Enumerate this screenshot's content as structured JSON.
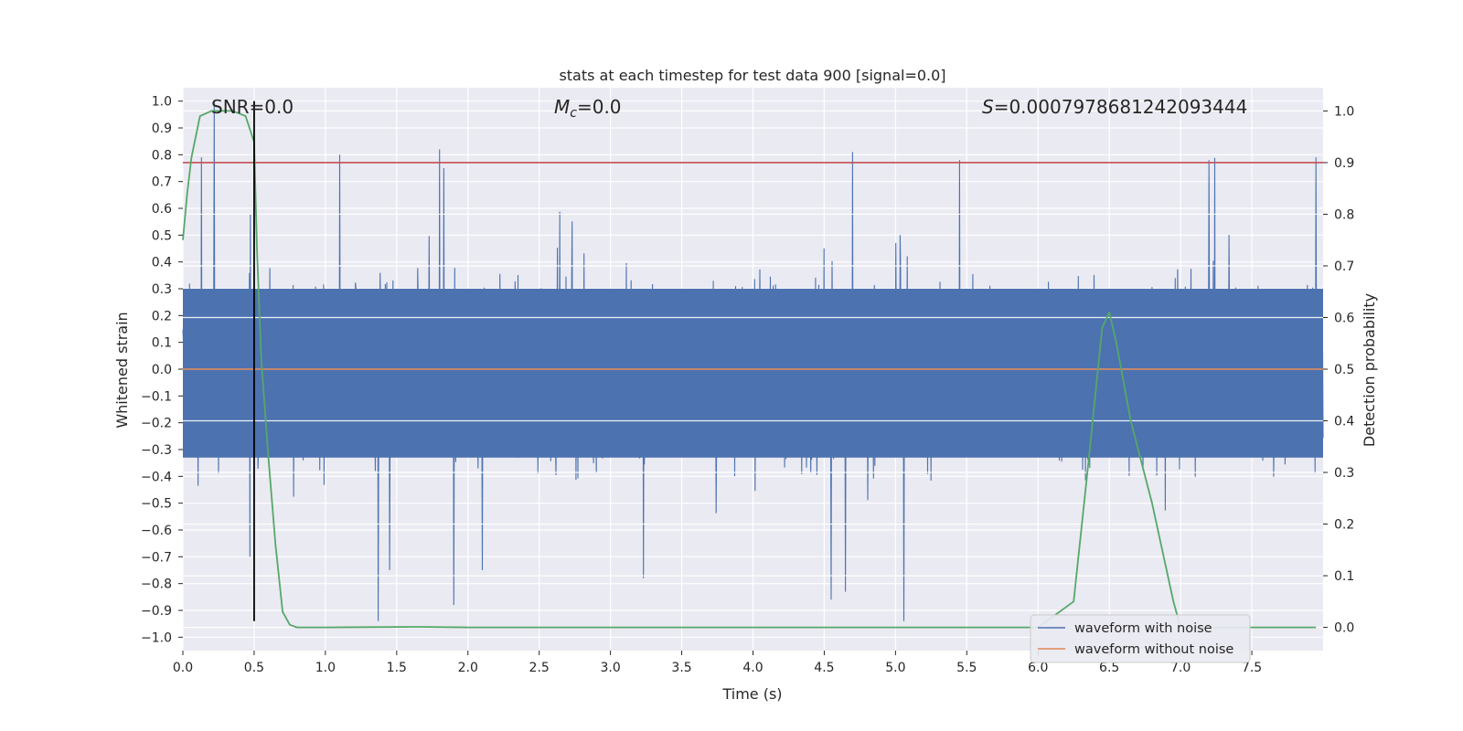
{
  "chart_data": {
    "type": "line",
    "title": "stats at each timestep for test data 900 [signal=0.0]",
    "xlabel": "Time (s)",
    "ylabel": "Whitened strain",
    "y2label": "Detection probability",
    "xlim": [
      0.0,
      8.0
    ],
    "ylim": [
      -1.05,
      1.05
    ],
    "y2lim": [
      -0.045,
      1.045
    ],
    "xticks": [
      "0.0",
      "0.5",
      "1.0",
      "1.5",
      "2.0",
      "2.5",
      "3.0",
      "3.5",
      "4.0",
      "4.5",
      "5.0",
      "5.5",
      "6.0",
      "6.5",
      "7.0",
      "7.5"
    ],
    "yticks": [
      "1.0",
      "0.9",
      "0.8",
      "0.7",
      "0.6",
      "0.5",
      "0.4",
      "0.3",
      "0.2",
      "0.1",
      "0.0",
      "-0.1",
      "-0.2",
      "-0.3",
      "-0.4",
      "-0.5",
      "-0.6",
      "-0.7",
      "-0.8",
      "-0.9",
      "-1.0"
    ],
    "y2ticks": [
      "1.0",
      "0.9",
      "0.8",
      "0.7",
      "0.6",
      "0.5",
      "0.4",
      "0.3",
      "0.2",
      "0.1",
      "0.0"
    ],
    "grid": true,
    "legend_position": "lower-right",
    "annotations": {
      "snr": "SNR=0.0",
      "mc_symbol": "M",
      "mc_subscript": "c",
      "mc_value": "=0.0",
      "s_symbol": "S",
      "s_value": "=0.0007978681242093444"
    },
    "series": [
      {
        "name": "waveform with noise",
        "color": "#4c72b0",
        "axis": "left",
        "noise_band": [
          -0.33,
          0.3
        ],
        "spikes": [
          {
            "x": 0.22,
            "y": 1.0
          },
          {
            "x": 1.9,
            "y": 0.88
          },
          {
            "x": 1.8,
            "y": 0.82
          },
          {
            "x": 4.7,
            "y": 0.81
          },
          {
            "x": 0.13,
            "y": 0.79
          },
          {
            "x": 1.1,
            "y": 0.8
          },
          {
            "x": 7.95,
            "y": 0.79
          },
          {
            "x": 5.45,
            "y": 0.78
          },
          {
            "x": 7.2,
            "y": 0.78
          },
          {
            "x": 1.37,
            "y": -0.94
          },
          {
            "x": 5.06,
            "y": -0.94
          },
          {
            "x": 1.9,
            "y": -0.88
          },
          {
            "x": 4.55,
            "y": -0.86
          },
          {
            "x": 4.65,
            "y": -0.83
          },
          {
            "x": 1.45,
            "y": -0.75
          },
          {
            "x": 0.47,
            "y": -0.7
          },
          {
            "x": 3.23,
            "y": -0.78
          },
          {
            "x": 2.1,
            "y": -0.75
          }
        ]
      },
      {
        "name": "waveform without noise",
        "color": "#dd8452",
        "axis": "left",
        "x": [
          0.0,
          8.0
        ],
        "y": [
          0.0,
          0.0
        ]
      },
      {
        "color": "#55a868",
        "axis": "right",
        "x": [
          0.0,
          0.03,
          0.06,
          0.12,
          0.2,
          0.28,
          0.35,
          0.44,
          0.5,
          0.52,
          0.55,
          0.6,
          0.65,
          0.7,
          0.75,
          0.8,
          1.0,
          1.65,
          2.0,
          6.0,
          6.25,
          6.35,
          6.45,
          6.5,
          6.55,
          6.65,
          6.8,
          6.95,
          7.0,
          7.5,
          7.95
        ],
        "y": [
          0.75,
          0.84,
          0.91,
          0.99,
          1.0,
          1.0,
          1.0,
          0.99,
          0.94,
          0.73,
          0.52,
          0.33,
          0.16,
          0.03,
          0.005,
          0.0,
          0.0,
          0.001,
          0.0,
          0.0,
          0.05,
          0.31,
          0.58,
          0.61,
          0.55,
          0.4,
          0.24,
          0.05,
          0.0,
          0.0,
          0.0
        ]
      }
    ],
    "threshold": {
      "color": "#c44e52",
      "y2": 0.9
    },
    "marker_line": {
      "color": "#000000",
      "x": 0.5,
      "y_from": -0.94,
      "y_to": 1.0
    }
  }
}
